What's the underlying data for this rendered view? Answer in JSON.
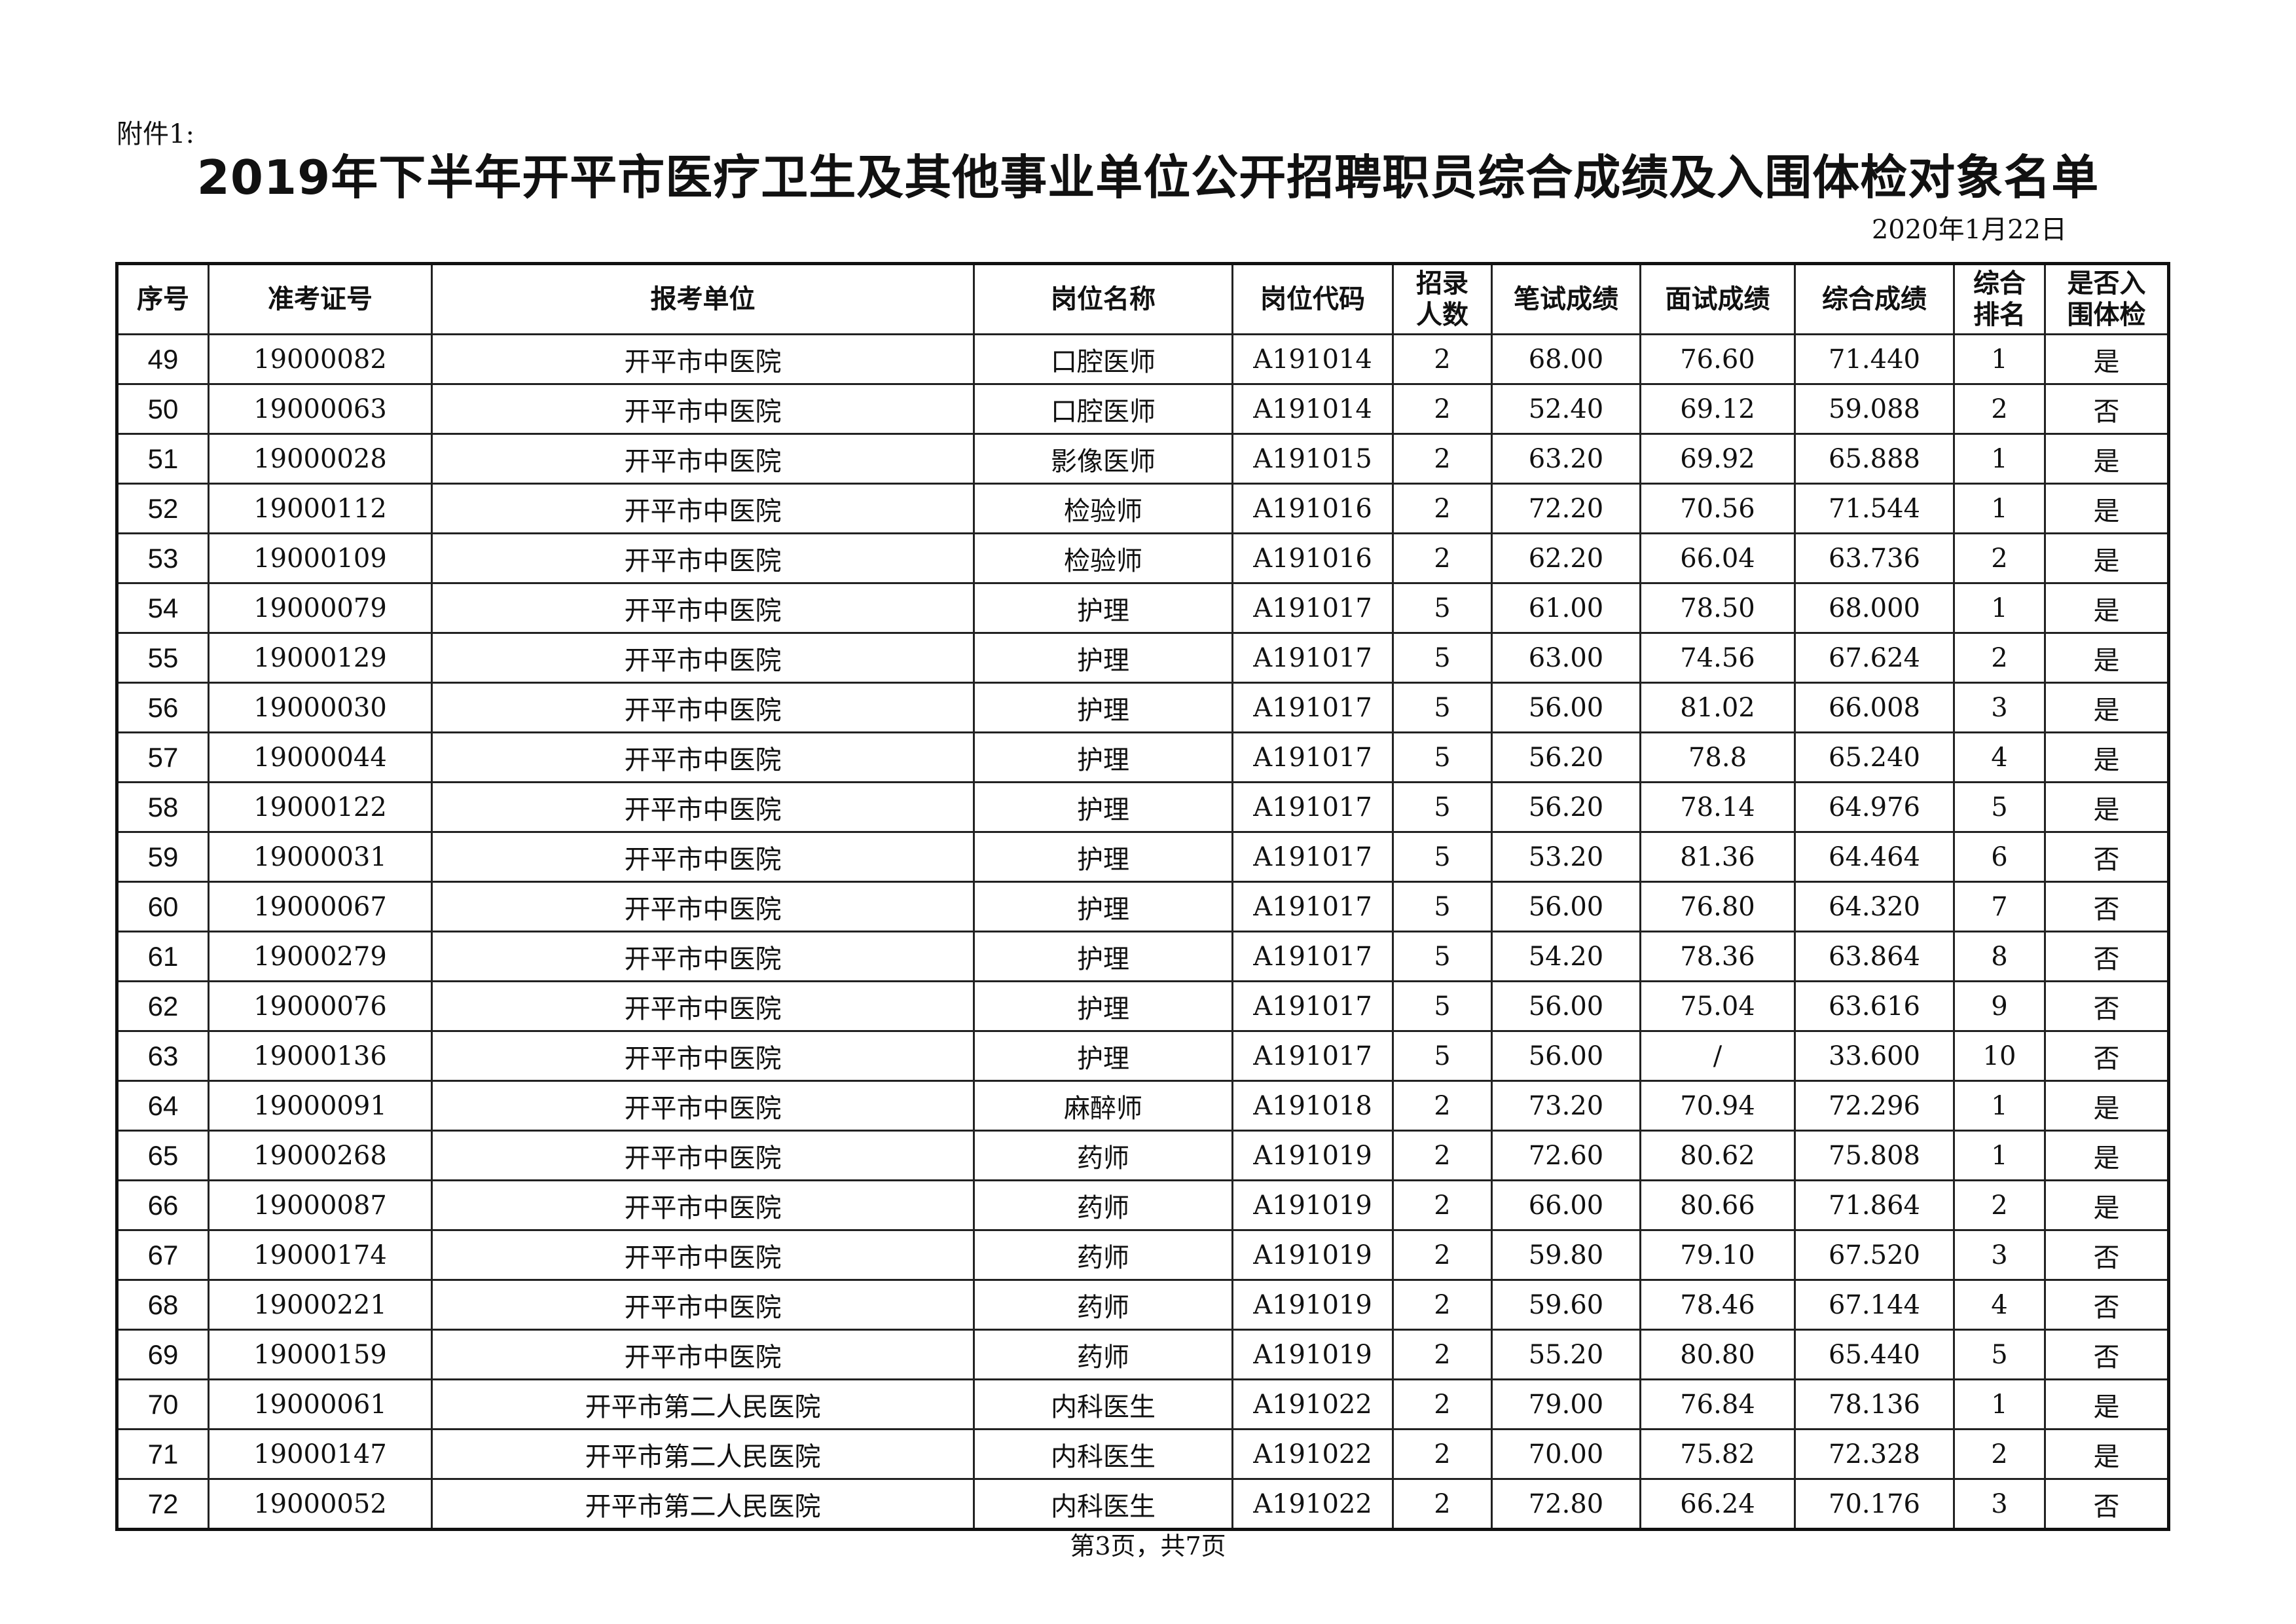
{
  "attachment_label": "附件1:",
  "title": "2019年下半年开平市医疗卫生及其他事业单位公开招聘职员综合成绩及入围体检对象名单",
  "date": "2020年1月22日",
  "headers": [
    "序号",
    "准考证号",
    "报考单位",
    "岗位名称",
    "岗位代码",
    "招录人数",
    "笔试成绩",
    "面试成绩",
    "综合成绩",
    "综合排名",
    "是否入围体检"
  ],
  "rows": [
    [
      "49",
      "19000082",
      "开平市中医院",
      "口腔医师",
      "A191014",
      "2",
      "68.00",
      "76.60",
      "71.440",
      "1",
      "是"
    ],
    [
      "50",
      "19000063",
      "开平市中医院",
      "口腔医师",
      "A191014",
      "2",
      "52.40",
      "69.12",
      "59.088",
      "2",
      "否"
    ],
    [
      "51",
      "19000028",
      "开平市中医院",
      "影像医师",
      "A191015",
      "2",
      "63.20",
      "69.92",
      "65.888",
      "1",
      "是"
    ],
    [
      "52",
      "19000112",
      "开平市中医院",
      "检验师",
      "A191016",
      "2",
      "72.20",
      "70.56",
      "71.544",
      "1",
      "是"
    ],
    [
      "53",
      "19000109",
      "开平市中医院",
      "检验师",
      "A191016",
      "2",
      "62.20",
      "66.04",
      "63.736",
      "2",
      "是"
    ],
    [
      "54",
      "19000079",
      "开平市中医院",
      "护理",
      "A191017",
      "5",
      "61.00",
      "78.50",
      "68.000",
      "1",
      "是"
    ],
    [
      "55",
      "19000129",
      "开平市中医院",
      "护理",
      "A191017",
      "5",
      "63.00",
      "74.56",
      "67.624",
      "2",
      "是"
    ],
    [
      "56",
      "19000030",
      "开平市中医院",
      "护理",
      "A191017",
      "5",
      "56.00",
      "81.02",
      "66.008",
      "3",
      "是"
    ],
    [
      "57",
      "19000044",
      "开平市中医院",
      "护理",
      "A191017",
      "5",
      "56.20",
      "78.8",
      "65.240",
      "4",
      "是"
    ],
    [
      "58",
      "19000122",
      "开平市中医院",
      "护理",
      "A191017",
      "5",
      "56.20",
      "78.14",
      "64.976",
      "5",
      "是"
    ],
    [
      "59",
      "19000031",
      "开平市中医院",
      "护理",
      "A191017",
      "5",
      "53.20",
      "81.36",
      "64.464",
      "6",
      "否"
    ],
    [
      "60",
      "19000067",
      "开平市中医院",
      "护理",
      "A191017",
      "5",
      "56.00",
      "76.80",
      "64.320",
      "7",
      "否"
    ],
    [
      "61",
      "19000279",
      "开平市中医院",
      "护理",
      "A191017",
      "5",
      "54.20",
      "78.36",
      "63.864",
      "8",
      "否"
    ],
    [
      "62",
      "19000076",
      "开平市中医院",
      "护理",
      "A191017",
      "5",
      "56.00",
      "75.04",
      "63.616",
      "9",
      "否"
    ],
    [
      "63",
      "19000136",
      "开平市中医院",
      "护理",
      "A191017",
      "5",
      "56.00",
      "/",
      "33.600",
      "10",
      "否"
    ],
    [
      "64",
      "19000091",
      "开平市中医院",
      "麻醉师",
      "A191018",
      "2",
      "73.20",
      "70.94",
      "72.296",
      "1",
      "是"
    ],
    [
      "65",
      "19000268",
      "开平市中医院",
      "药师",
      "A191019",
      "2",
      "72.60",
      "80.62",
      "75.808",
      "1",
      "是"
    ],
    [
      "66",
      "19000087",
      "开平市中医院",
      "药师",
      "A191019",
      "2",
      "66.00",
      "80.66",
      "71.864",
      "2",
      "是"
    ],
    [
      "67",
      "19000174",
      "开平市中医院",
      "药师",
      "A191019",
      "2",
      "59.80",
      "79.10",
      "67.520",
      "3",
      "否"
    ],
    [
      "68",
      "19000221",
      "开平市中医院",
      "药师",
      "A191019",
      "2",
      "59.60",
      "78.46",
      "67.144",
      "4",
      "否"
    ],
    [
      "69",
      "19000159",
      "开平市中医院",
      "药师",
      "A191019",
      "2",
      "55.20",
      "80.80",
      "65.440",
      "5",
      "否"
    ],
    [
      "70",
      "19000061",
      "开平市第二人民医院",
      "内科医生",
      "A191022",
      "2",
      "79.00",
      "76.84",
      "78.136",
      "1",
      "是"
    ],
    [
      "71",
      "19000147",
      "开平市第二人民医院",
      "内科医生",
      "A191022",
      "2",
      "70.00",
      "75.82",
      "72.328",
      "2",
      "是"
    ],
    [
      "72",
      "19000052",
      "开平市第二人民医院",
      "内科医生",
      "A191022",
      "2",
      "72.80",
      "66.24",
      "70.176",
      "3",
      "否"
    ]
  ],
  "footer": "第3页，共7页"
}
